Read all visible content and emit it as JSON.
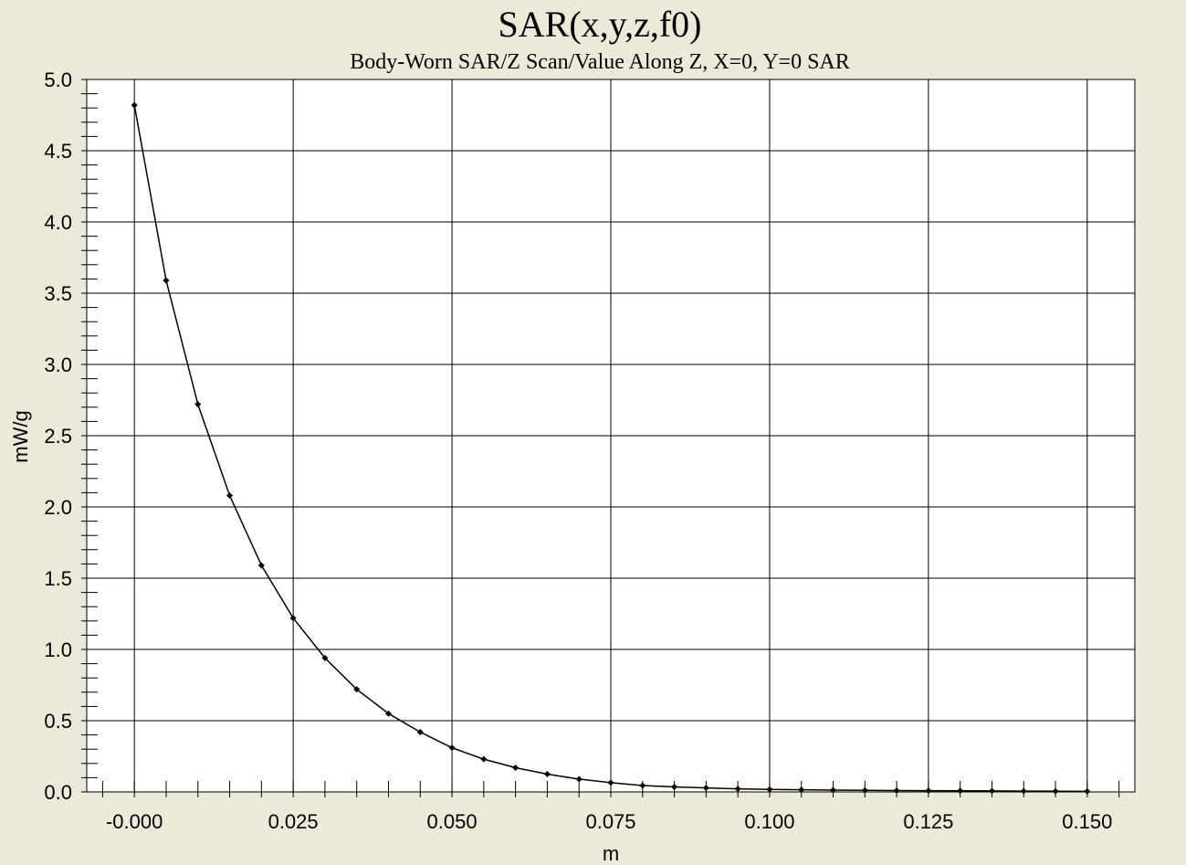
{
  "chart_data": {
    "type": "line",
    "title": "SAR(x,y,z,f0)",
    "subtitle": "Body-Worn SAR/Z Scan/Value Along Z, X=0, Y=0 SAR",
    "xlabel": "m",
    "ylabel": "mW/g",
    "xlim": [
      -0.0075,
      0.1575
    ],
    "ylim": [
      0.0,
      5.0
    ],
    "grid": true,
    "x_ticks": [
      0.0,
      0.025,
      0.05,
      0.075,
      0.1,
      0.125,
      0.15
    ],
    "x_tick_labels": [
      "-0.000",
      "0.025",
      "0.050",
      "0.075",
      "0.100",
      "0.125",
      "0.150"
    ],
    "y_ticks": [
      0.0,
      0.5,
      1.0,
      1.5,
      2.0,
      2.5,
      3.0,
      3.5,
      4.0,
      4.5,
      5.0
    ],
    "y_tick_labels": [
      "0.0",
      "0.5",
      "1.0",
      "1.5",
      "2.0",
      "2.5",
      "3.0",
      "3.5",
      "4.0",
      "4.5",
      "5.0"
    ],
    "series": [
      {
        "color": "#000000",
        "x": [
          0.0,
          0.005,
          0.01,
          0.015,
          0.02,
          0.025,
          0.03,
          0.035,
          0.04,
          0.045,
          0.05,
          0.055,
          0.06,
          0.065,
          0.07,
          0.075,
          0.08,
          0.085,
          0.09,
          0.095,
          0.1,
          0.105,
          0.11,
          0.115,
          0.12,
          0.125,
          0.13,
          0.135,
          0.14,
          0.145,
          0.15
        ],
        "y": [
          4.82,
          3.59,
          2.72,
          2.08,
          1.59,
          1.22,
          0.94,
          0.72,
          0.55,
          0.42,
          0.31,
          0.23,
          0.17,
          0.125,
          0.09,
          0.065,
          0.045,
          0.035,
          0.028,
          0.022,
          0.018,
          0.015,
          0.013,
          0.011,
          0.01,
          0.009,
          0.008,
          0.007,
          0.006,
          0.005,
          0.004
        ]
      }
    ]
  }
}
